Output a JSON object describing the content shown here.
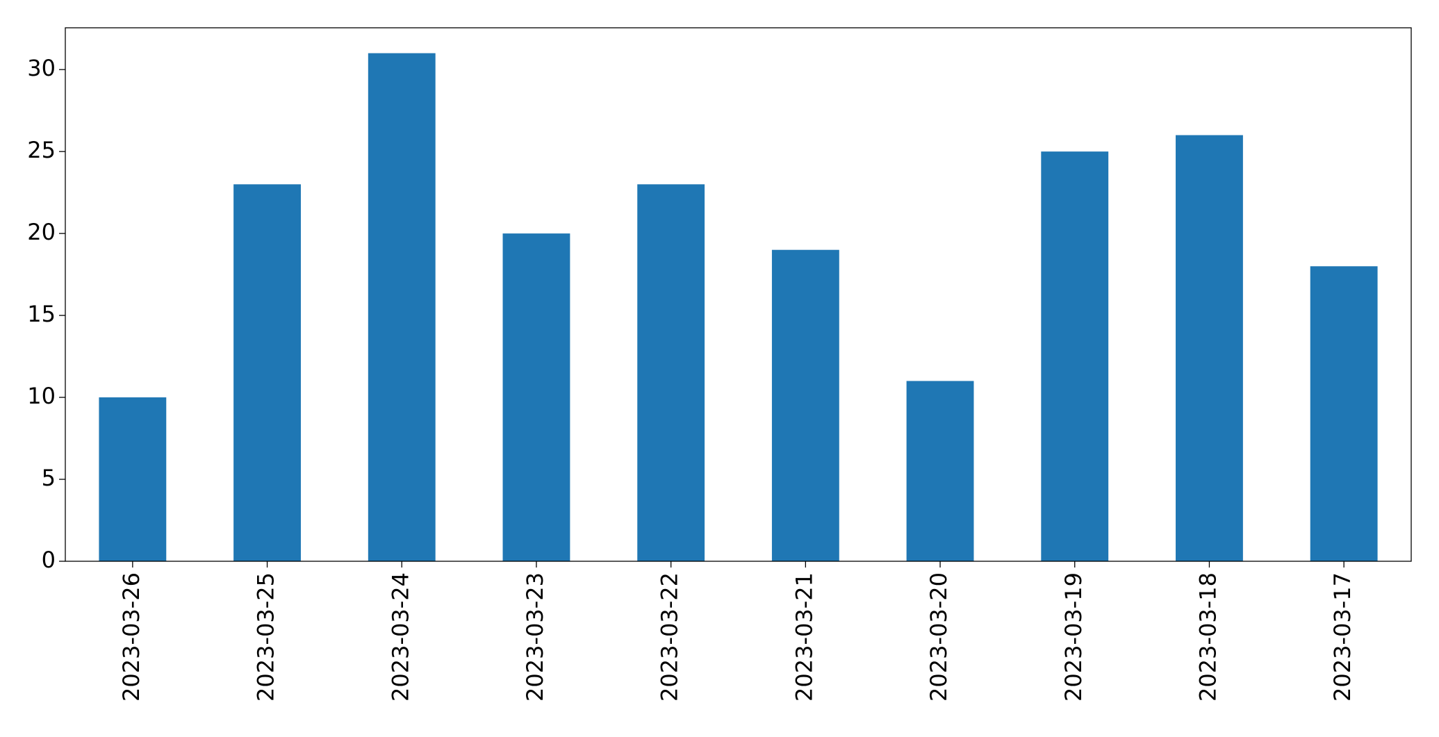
{
  "chart_data": {
    "type": "bar",
    "categories": [
      "2023-03-26",
      "2023-03-25",
      "2023-03-24",
      "2023-03-23",
      "2023-03-22",
      "2023-03-21",
      "2023-03-20",
      "2023-03-19",
      "2023-03-18",
      "2023-03-17"
    ],
    "values": [
      10,
      23,
      31,
      20,
      23,
      19,
      11,
      25,
      26,
      18
    ],
    "color": "#1f77b4",
    "ylim": [
      0,
      32.55
    ],
    "yticks": [
      0,
      5,
      10,
      15,
      20,
      25,
      30
    ],
    "grid": false
  }
}
